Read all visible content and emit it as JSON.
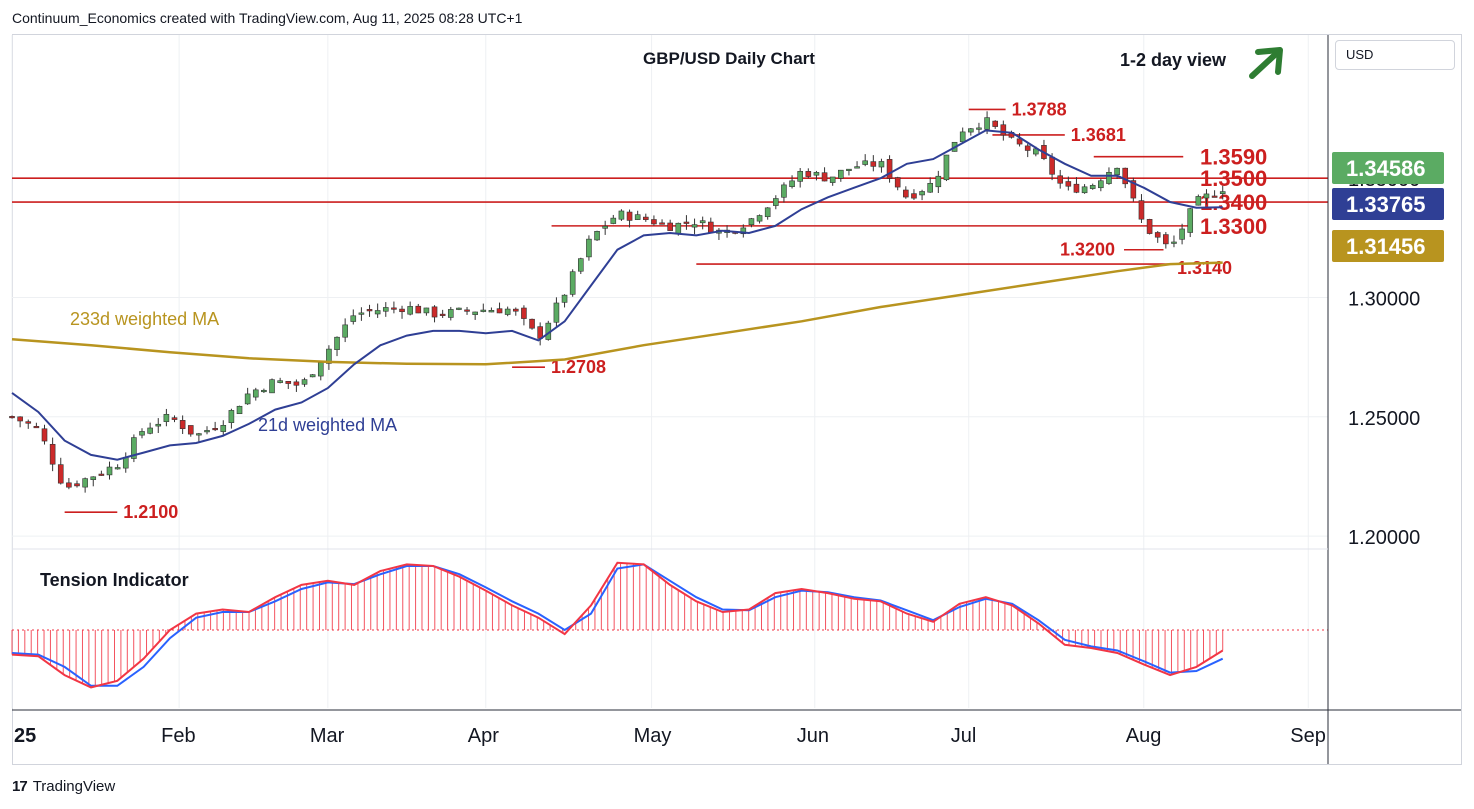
{
  "header": {
    "credit": "Continuum_Economics created with TradingView.com, Aug 11, 2025 08:28 UTC+1"
  },
  "footer": {
    "brand": "TradingView",
    "logo_text": "17"
  },
  "currency_button": "USD",
  "chart_data": {
    "type": "line",
    "title": "GBP/USD Daily Chart",
    "view_label": "1-2 day view",
    "view_direction": "up",
    "yticks": [
      "1.20000",
      "1.25000",
      "1.30000",
      "1.35000"
    ],
    "ylim": [
      1.195,
      1.41
    ],
    "xticks": [
      "25",
      "Feb",
      "Mar",
      "Apr",
      "May",
      "Jun",
      "Jul",
      "Aug",
      "Sep"
    ],
    "price_badges": [
      {
        "label": "1.34586",
        "value": 1.34586,
        "color": "#5bab63"
      },
      {
        "label": "1.33765",
        "value": 1.33765,
        "color": "#2f3f95"
      },
      {
        "label": "1.31456",
        "value": 1.31456,
        "color": "#b8941f"
      }
    ],
    "levels": [
      {
        "label": "1.3788",
        "value": 1.3788
      },
      {
        "label": "1.3681",
        "value": 1.3681
      },
      {
        "label": "1.3590",
        "value": 1.359
      },
      {
        "label": "1.3500",
        "value": 1.35
      },
      {
        "label": "1.3400",
        "value": 1.34
      },
      {
        "label": "1.3300",
        "value": 1.33
      },
      {
        "label": "1.3200",
        "value": 1.32
      },
      {
        "label": "1.3140",
        "value": 1.314
      },
      {
        "label": "1.2708",
        "value": 1.2708
      },
      {
        "label": "1.2100",
        "value": 1.21
      }
    ],
    "ma_labels": {
      "ma233": "233d weighted MA",
      "ma21": "21d weighted MA"
    },
    "ma233": [
      [
        0,
        1.2825
      ],
      [
        0.06,
        1.28
      ],
      [
        0.12,
        1.277
      ],
      [
        0.18,
        1.2745
      ],
      [
        0.24,
        1.273
      ],
      [
        0.3,
        1.2722
      ],
      [
        0.36,
        1.272
      ],
      [
        0.42,
        1.274
      ],
      [
        0.48,
        1.28
      ],
      [
        0.54,
        1.285
      ],
      [
        0.6,
        1.29
      ],
      [
        0.66,
        1.296
      ],
      [
        0.72,
        1.301
      ],
      [
        0.78,
        1.306
      ],
      [
        0.84,
        1.311
      ],
      [
        0.88,
        1.314
      ],
      [
        0.92,
        1.3146
      ]
    ],
    "ma21": [
      [
        0,
        1.26
      ],
      [
        0.02,
        1.252
      ],
      [
        0.04,
        1.24
      ],
      [
        0.06,
        1.234
      ],
      [
        0.08,
        1.232
      ],
      [
        0.1,
        1.235
      ],
      [
        0.12,
        1.238
      ],
      [
        0.14,
        1.239
      ],
      [
        0.16,
        1.242
      ],
      [
        0.18,
        1.247
      ],
      [
        0.2,
        1.253
      ],
      [
        0.22,
        1.256
      ],
      [
        0.24,
        1.262
      ],
      [
        0.26,
        1.272
      ],
      [
        0.28,
        1.28
      ],
      [
        0.3,
        1.284
      ],
      [
        0.32,
        1.286
      ],
      [
        0.34,
        1.286
      ],
      [
        0.36,
        1.285
      ],
      [
        0.38,
        1.286
      ],
      [
        0.4,
        1.282
      ],
      [
        0.42,
        1.29
      ],
      [
        0.44,
        1.305
      ],
      [
        0.46,
        1.32
      ],
      [
        0.48,
        1.326
      ],
      [
        0.5,
        1.327
      ],
      [
        0.52,
        1.326
      ],
      [
        0.54,
        1.328
      ],
      [
        0.56,
        1.327
      ],
      [
        0.58,
        1.33
      ],
      [
        0.6,
        1.337
      ],
      [
        0.62,
        1.342
      ],
      [
        0.64,
        1.346
      ],
      [
        0.66,
        1.35
      ],
      [
        0.68,
        1.356
      ],
      [
        0.7,
        1.358
      ],
      [
        0.72,
        1.364
      ],
      [
        0.74,
        1.37
      ],
      [
        0.76,
        1.369
      ],
      [
        0.78,
        1.362
      ],
      [
        0.8,
        1.356
      ],
      [
        0.82,
        1.351
      ],
      [
        0.84,
        1.351
      ],
      [
        0.86,
        1.346
      ],
      [
        0.88,
        1.34
      ],
      [
        0.9,
        1.3376
      ],
      [
        0.92,
        1.3378
      ]
    ],
    "close": [
      [
        0,
        1.25
      ],
      [
        0.02,
        1.245
      ],
      [
        0.04,
        1.22
      ],
      [
        0.06,
        1.225
      ],
      [
        0.08,
        1.23
      ],
      [
        0.1,
        1.245
      ],
      [
        0.12,
        1.25
      ],
      [
        0.14,
        1.242
      ],
      [
        0.16,
        1.248
      ],
      [
        0.18,
        1.26
      ],
      [
        0.2,
        1.265
      ],
      [
        0.22,
        1.263
      ],
      [
        0.24,
        1.278
      ],
      [
        0.26,
        1.293
      ],
      [
        0.28,
        1.295
      ],
      [
        0.3,
        1.296
      ],
      [
        0.32,
        1.293
      ],
      [
        0.34,
        1.294
      ],
      [
        0.36,
        1.295
      ],
      [
        0.38,
        1.295
      ],
      [
        0.4,
        1.283
      ],
      [
        0.42,
        1.302
      ],
      [
        0.44,
        1.325
      ],
      [
        0.46,
        1.335
      ],
      [
        0.48,
        1.333
      ],
      [
        0.5,
        1.33
      ],
      [
        0.52,
        1.332
      ],
      [
        0.54,
        1.327
      ],
      [
        0.56,
        1.332
      ],
      [
        0.58,
        1.342
      ],
      [
        0.6,
        1.353
      ],
      [
        0.62,
        1.35
      ],
      [
        0.64,
        1.355
      ],
      [
        0.66,
        1.356
      ],
      [
        0.68,
        1.342
      ],
      [
        0.7,
        1.348
      ],
      [
        0.72,
        1.37
      ],
      [
        0.74,
        1.374
      ],
      [
        0.76,
        1.365
      ],
      [
        0.78,
        1.36
      ],
      [
        0.8,
        1.345
      ],
      [
        0.82,
        1.347
      ],
      [
        0.84,
        1.356
      ],
      [
        0.86,
        1.33
      ],
      [
        0.88,
        1.32
      ],
      [
        0.9,
        1.34
      ],
      [
        0.92,
        1.3459
      ]
    ],
    "indicator": {
      "name": "Tension Indicator",
      "fast": [
        [
          0,
          -0.3
        ],
        [
          0.02,
          -0.32
        ],
        [
          0.04,
          -0.55
        ],
        [
          0.06,
          -0.7
        ],
        [
          0.08,
          -0.62
        ],
        [
          0.1,
          -0.35
        ],
        [
          0.12,
          0.0
        ],
        [
          0.14,
          0.2
        ],
        [
          0.16,
          0.25
        ],
        [
          0.18,
          0.22
        ],
        [
          0.2,
          0.4
        ],
        [
          0.22,
          0.55
        ],
        [
          0.24,
          0.6
        ],
        [
          0.26,
          0.55
        ],
        [
          0.28,
          0.72
        ],
        [
          0.3,
          0.8
        ],
        [
          0.32,
          0.78
        ],
        [
          0.34,
          0.65
        ],
        [
          0.36,
          0.48
        ],
        [
          0.38,
          0.3
        ],
        [
          0.4,
          0.15
        ],
        [
          0.42,
          -0.05
        ],
        [
          0.44,
          0.3
        ],
        [
          0.46,
          0.82
        ],
        [
          0.48,
          0.8
        ],
        [
          0.5,
          0.55
        ],
        [
          0.52,
          0.35
        ],
        [
          0.54,
          0.22
        ],
        [
          0.56,
          0.25
        ],
        [
          0.58,
          0.45
        ],
        [
          0.6,
          0.5
        ],
        [
          0.62,
          0.45
        ],
        [
          0.64,
          0.38
        ],
        [
          0.66,
          0.35
        ],
        [
          0.68,
          0.2
        ],
        [
          0.7,
          0.1
        ],
        [
          0.72,
          0.32
        ],
        [
          0.74,
          0.4
        ],
        [
          0.76,
          0.3
        ],
        [
          0.78,
          0.08
        ],
        [
          0.8,
          -0.18
        ],
        [
          0.82,
          -0.22
        ],
        [
          0.84,
          -0.28
        ],
        [
          0.86,
          -0.42
        ],
        [
          0.88,
          -0.55
        ],
        [
          0.9,
          -0.45
        ],
        [
          0.92,
          -0.25
        ]
      ],
      "slow": [
        [
          0,
          -0.28
        ],
        [
          0.02,
          -0.3
        ],
        [
          0.04,
          -0.45
        ],
        [
          0.06,
          -0.68
        ],
        [
          0.08,
          -0.68
        ],
        [
          0.1,
          -0.45
        ],
        [
          0.12,
          -0.1
        ],
        [
          0.14,
          0.15
        ],
        [
          0.16,
          0.22
        ],
        [
          0.18,
          0.22
        ],
        [
          0.2,
          0.35
        ],
        [
          0.22,
          0.5
        ],
        [
          0.24,
          0.58
        ],
        [
          0.26,
          0.56
        ],
        [
          0.28,
          0.68
        ],
        [
          0.3,
          0.78
        ],
        [
          0.32,
          0.78
        ],
        [
          0.34,
          0.68
        ],
        [
          0.36,
          0.52
        ],
        [
          0.38,
          0.35
        ],
        [
          0.4,
          0.2
        ],
        [
          0.42,
          0.0
        ],
        [
          0.44,
          0.2
        ],
        [
          0.46,
          0.75
        ],
        [
          0.48,
          0.8
        ],
        [
          0.5,
          0.6
        ],
        [
          0.52,
          0.4
        ],
        [
          0.54,
          0.25
        ],
        [
          0.56,
          0.24
        ],
        [
          0.58,
          0.4
        ],
        [
          0.6,
          0.48
        ],
        [
          0.62,
          0.46
        ],
        [
          0.64,
          0.4
        ],
        [
          0.66,
          0.36
        ],
        [
          0.68,
          0.24
        ],
        [
          0.7,
          0.12
        ],
        [
          0.72,
          0.28
        ],
        [
          0.74,
          0.38
        ],
        [
          0.76,
          0.32
        ],
        [
          0.78,
          0.12
        ],
        [
          0.8,
          -0.12
        ],
        [
          0.82,
          -0.2
        ],
        [
          0.84,
          -0.25
        ],
        [
          0.86,
          -0.38
        ],
        [
          0.88,
          -0.52
        ],
        [
          0.9,
          -0.5
        ],
        [
          0.92,
          -0.35
        ]
      ]
    },
    "colors": {
      "ma233": "#b8941f",
      "ma21": "#2f3f95",
      "levels": "#cc1f1f",
      "fast": "#f23645",
      "slow": "#2962ff",
      "arrow": "#2e7d32",
      "up_candle": "#5bab63",
      "down_candle": "#cc2a2a"
    }
  }
}
